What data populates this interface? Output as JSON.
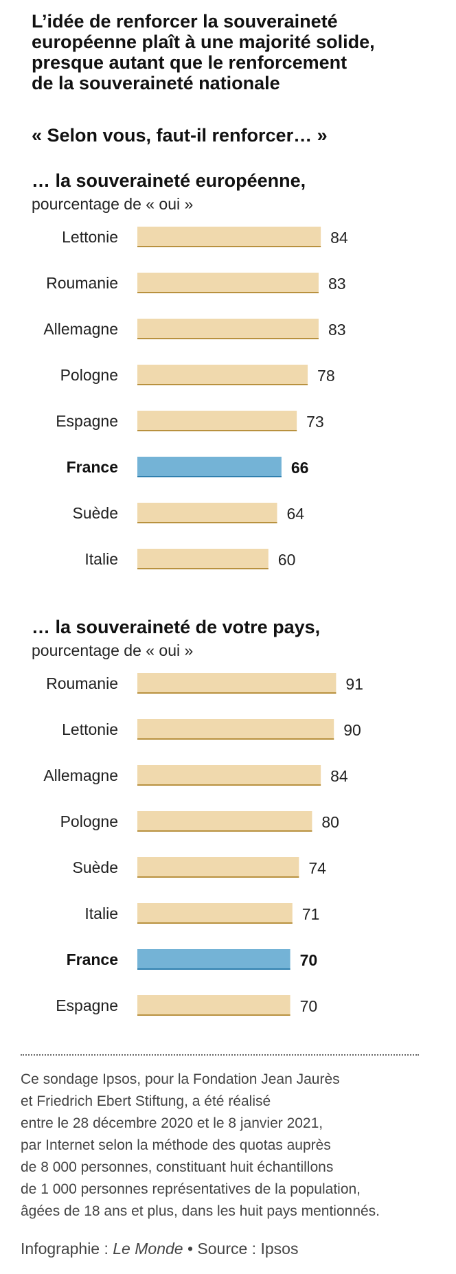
{
  "header": {
    "title_lines": [
      "L’idée de renforcer la souveraineté",
      "européenne plaît à une majorité solide,",
      "presque autant que le renforcement",
      "de la souveraineté nationale"
    ],
    "question": "« Selon vous, faut-il renforcer… »"
  },
  "colors": {
    "bar": "#f0d9ad",
    "bar_baseline": "#b8913f",
    "highlight": "#74b3d6",
    "highlight_baseline": "#2f7fae"
  },
  "highlight_country": "France",
  "chart_data": [
    {
      "type": "bar",
      "orientation": "horizontal",
      "title": "… la souveraineté européenne,",
      "subtitle": "pourcentage de « oui »",
      "categories": [
        "Lettonie",
        "Roumanie",
        "Allemagne",
        "Pologne",
        "Espagne",
        "France",
        "Suède",
        "Italie"
      ],
      "values": [
        84,
        83,
        83,
        78,
        73,
        66,
        64,
        60
      ]
    },
    {
      "type": "bar",
      "orientation": "horizontal",
      "title": "… la souveraineté de votre pays,",
      "subtitle": "pourcentage de « oui »",
      "categories": [
        "Roumanie",
        "Lettonie",
        "Allemagne",
        "Pologne",
        "Suède",
        "Italie",
        "France",
        "Espagne"
      ],
      "values": [
        91,
        90,
        84,
        80,
        74,
        71,
        70,
        70
      ]
    }
  ],
  "footnote_lines": [
    "Ce sondage Ipsos, pour la Fondation Jean Jaurès",
    "et Friedrich Ebert Stiftung, a été réalisé",
    "entre le 28 décembre 2020 et le 8 janvier 2021,",
    "par Internet selon la méthode des quotas auprès",
    "de 8 000 personnes, constituant huit échantillons",
    "de 1 000 personnes représentatives de la population,",
    "âgées de 18 ans et plus, dans les huit pays mentionnés."
  ],
  "credit": {
    "prefix": "Infographie : ",
    "publication": "Le Monde",
    "separator": " • ",
    "source": "Source : Ipsos"
  }
}
